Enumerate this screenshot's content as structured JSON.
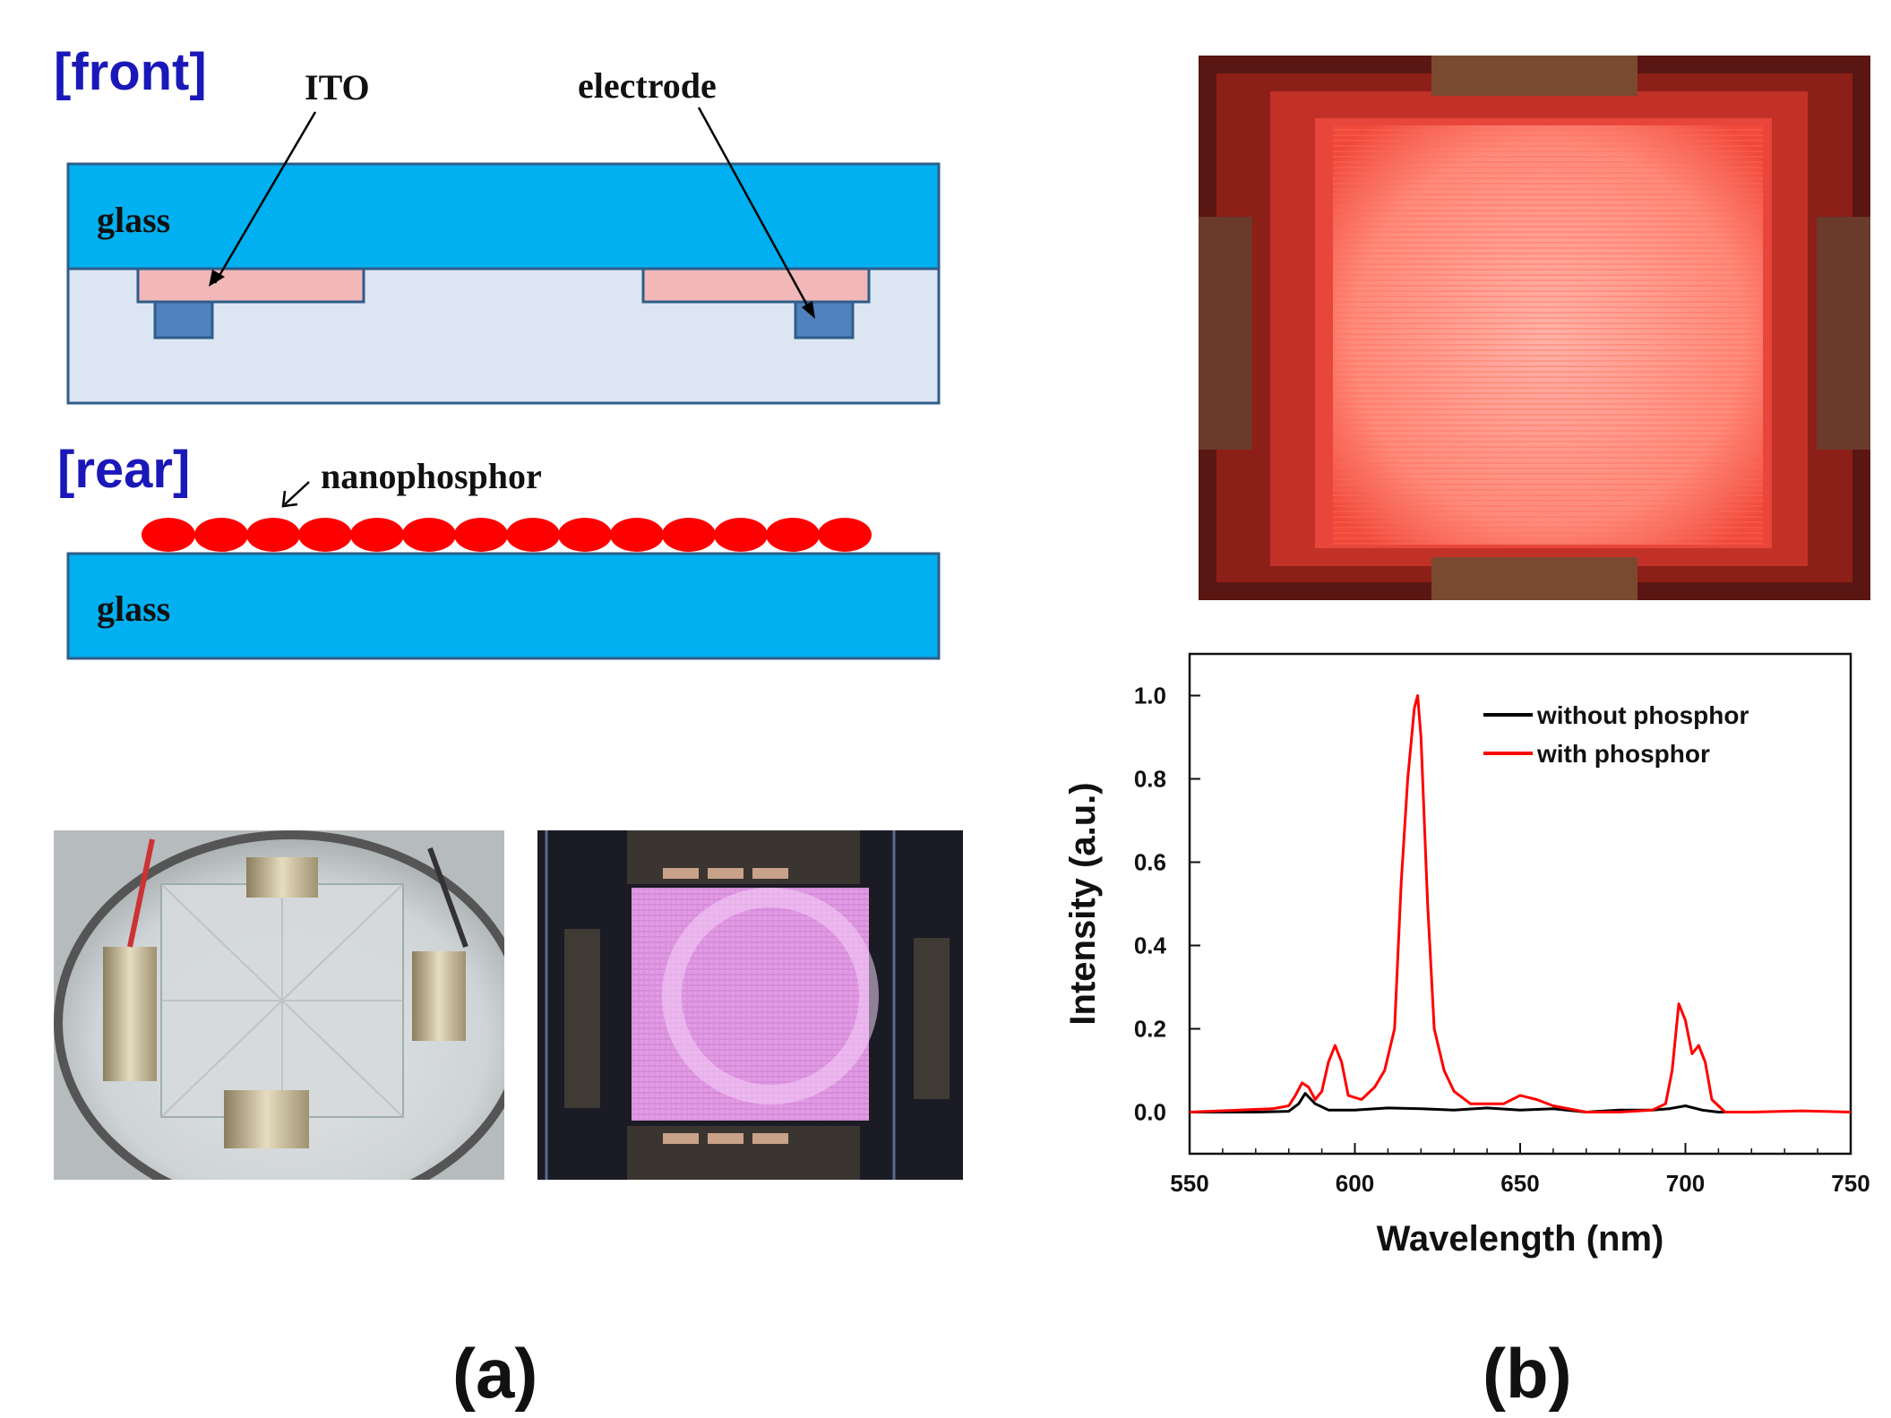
{
  "panel_a": {
    "front_label": "[front]",
    "rear_label": "[rear]",
    "ito_label": "ITO",
    "electrode_label": "electrode",
    "glass_front_label": "glass",
    "glass_rear_label": "glass",
    "nanophosphor_label": "nanophosphor",
    "caption": "(a)"
  },
  "panel_b": {
    "caption": "(b)"
  },
  "colors": {
    "glass": "#00b0f0",
    "layer": "#dce6f2",
    "ito": "#f2b8b8",
    "electrode": "#4f81bd",
    "phosphor": "#ff0000",
    "section_label": "#1a18b8"
  },
  "chart_data": {
    "type": "line",
    "xlabel": "Wavelength (nm)",
    "ylabel": "Intensity (a.u.)",
    "xlim": [
      550,
      750
    ],
    "ylim": [
      -0.1,
      1.1
    ],
    "xticks": [
      550,
      600,
      650,
      700,
      750
    ],
    "yticks": [
      0.0,
      0.2,
      0.4,
      0.6,
      0.8,
      1.0
    ],
    "xtick_labels": [
      "550",
      "600",
      "650",
      "700",
      "750"
    ],
    "ytick_labels": [
      "0.0",
      "0.2",
      "0.4",
      "0.6",
      "0.8",
      "1.0"
    ],
    "legend": "top-right",
    "series": [
      {
        "name": "without phosphor",
        "color": "#000000",
        "x": [
          550,
          570,
          580,
          583,
          585,
          588,
          592,
          600,
          610,
          620,
          630,
          640,
          650,
          660,
          670,
          680,
          690,
          695,
          700,
          705,
          710,
          720
        ],
        "values": [
          0.0,
          0.0,
          0.002,
          0.02,
          0.045,
          0.02,
          0.005,
          0.005,
          0.01,
          0.008,
          0.005,
          0.01,
          0.005,
          0.008,
          0.0,
          0.005,
          0.005,
          0.008,
          0.015,
          0.005,
          0.0,
          0.0
        ]
      },
      {
        "name": "with phosphor",
        "color": "#ff0000",
        "x": [
          550,
          565,
          575,
          580,
          582,
          584,
          586,
          588,
          590,
          592,
          594,
          596,
          598,
          602,
          606,
          609,
          612,
          614,
          616,
          618,
          619,
          620,
          622,
          624,
          627,
          630,
          635,
          640,
          645,
          650,
          655,
          660,
          670,
          680,
          690,
          694,
          696,
          698,
          700,
          702,
          704,
          706,
          708,
          712,
          720,
          735,
          750
        ],
        "values": [
          0.0,
          0.005,
          0.008,
          0.015,
          0.04,
          0.07,
          0.06,
          0.03,
          0.05,
          0.12,
          0.16,
          0.12,
          0.04,
          0.03,
          0.06,
          0.1,
          0.2,
          0.55,
          0.8,
          0.97,
          1.0,
          0.9,
          0.5,
          0.2,
          0.1,
          0.05,
          0.02,
          0.02,
          0.02,
          0.04,
          0.03,
          0.015,
          0.0,
          0.0,
          0.005,
          0.02,
          0.1,
          0.26,
          0.22,
          0.14,
          0.16,
          0.12,
          0.03,
          0.0,
          0.0,
          0.003,
          0.0
        ]
      }
    ]
  }
}
